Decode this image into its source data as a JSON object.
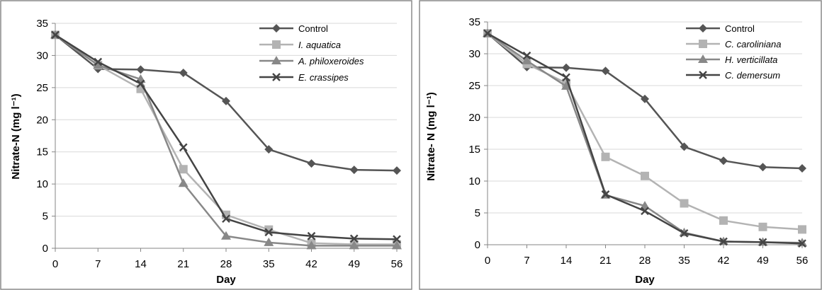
{
  "chart_data": [
    {
      "type": "line",
      "title": "",
      "xlabel": "Day",
      "ylabel": "Nitrate-N (mg l⁻¹)",
      "xlim": [
        0,
        56
      ],
      "ylim": [
        0,
        35
      ],
      "x": [
        0,
        7,
        14,
        21,
        28,
        35,
        42,
        49,
        56
      ],
      "x_ticks": [
        "0",
        "7",
        "14",
        "21",
        "28",
        "35",
        "42",
        "49",
        "56"
      ],
      "y_ticks": [
        "0",
        "5",
        "10",
        "15",
        "20",
        "25",
        "30",
        "35"
      ],
      "grid": "horizontal",
      "legend_position": "top-right",
      "series": [
        {
          "name": "Control",
          "italic": false,
          "marker": "diamond",
          "color": "#555555",
          "values": [
            33.2,
            27.9,
            27.8,
            27.3,
            22.9,
            15.4,
            13.2,
            12.2,
            12.1
          ]
        },
        {
          "name": "I. aquatica",
          "italic": true,
          "marker": "square",
          "color": "#b3b3b3",
          "values": [
            33.2,
            28.5,
            24.8,
            12.3,
            5.2,
            2.9,
            0.8,
            0.6,
            0.6
          ]
        },
        {
          "name": "A. philoxeroides",
          "italic": true,
          "marker": "triangle",
          "color": "#888888",
          "values": [
            33.2,
            28.5,
            26.3,
            10.1,
            1.9,
            0.9,
            0.4,
            0.4,
            0.4
          ]
        },
        {
          "name": "E. crassipes",
          "italic": true,
          "marker": "x",
          "color": "#444444",
          "values": [
            33.2,
            29.0,
            25.6,
            15.7,
            4.6,
            2.5,
            1.9,
            1.5,
            1.4
          ]
        }
      ]
    },
    {
      "type": "line",
      "title": "",
      "xlabel": "Day",
      "ylabel": "Nitrate- N (mg l⁻¹)",
      "xlim": [
        0,
        56
      ],
      "ylim": [
        0,
        35
      ],
      "x": [
        0,
        7,
        14,
        21,
        28,
        35,
        42,
        49,
        56
      ],
      "x_ticks": [
        "0",
        "7",
        "14",
        "21",
        "28",
        "35",
        "42",
        "49",
        "56"
      ],
      "y_ticks": [
        "0",
        "5",
        "10",
        "15",
        "20",
        "25",
        "30",
        "35"
      ],
      "grid": "horizontal",
      "legend_position": "top-right",
      "series": [
        {
          "name": "Control",
          "italic": false,
          "marker": "diamond",
          "color": "#555555",
          "values": [
            33.2,
            27.9,
            27.8,
            27.3,
            22.9,
            15.4,
            13.2,
            12.2,
            12.0
          ]
        },
        {
          "name": "C. caroliniana",
          "italic": true,
          "marker": "square",
          "color": "#b3b3b3",
          "values": [
            33.2,
            28.4,
            25.4,
            13.8,
            10.8,
            6.5,
            3.8,
            2.8,
            2.4
          ]
        },
        {
          "name": "H. verticillata",
          "italic": true,
          "marker": "triangle",
          "color": "#888888",
          "values": [
            33.2,
            28.9,
            24.9,
            7.8,
            6.1,
            1.9,
            0.5,
            0.4,
            0.3
          ]
        },
        {
          "name": "C. demersum",
          "italic": true,
          "marker": "x",
          "color": "#444444",
          "values": [
            33.2,
            29.7,
            26.3,
            7.9,
            5.3,
            1.8,
            0.5,
            0.4,
            0.2
          ]
        }
      ]
    }
  ]
}
